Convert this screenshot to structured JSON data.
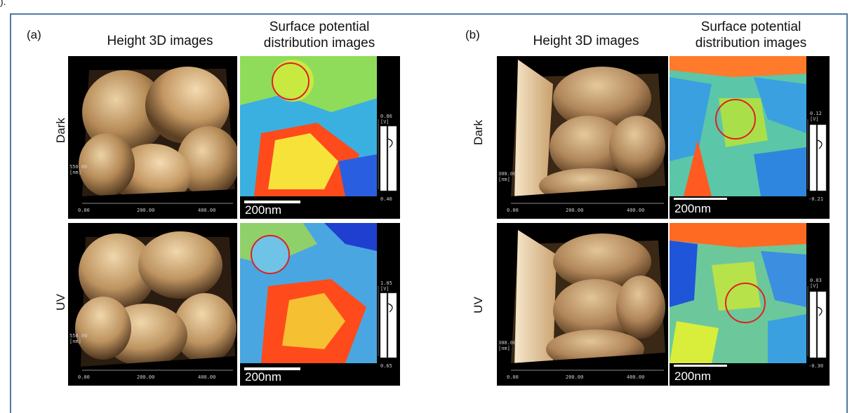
{
  "corner_mark": ").",
  "panels": [
    {
      "letter": "(a)",
      "col_titles": [
        "Height 3D images",
        "Surface potential\ndistribution images"
      ],
      "rows": [
        {
          "label": "Dark",
          "z_scale": "550.00",
          "z_unit": "[nm]",
          "x_ticks": [
            "0.00",
            "200.00",
            "400.00"
          ],
          "cb_max": "0.86",
          "cb_unit": "[V]",
          "cb_min": "0.46",
          "scale_bar": "200nm"
        },
        {
          "label": "UV",
          "z_scale": "550.00",
          "z_unit": "[nm]",
          "x_ticks": [
            "0.00",
            "200.00",
            "400.00"
          ],
          "cb_max": "1.05",
          "cb_unit": "[V]",
          "cb_min": "0.65",
          "scale_bar": "200nm"
        }
      ]
    },
    {
      "letter": "(b)",
      "col_titles": [
        "Height 3D images",
        "Surface potential\ndistribution images"
      ],
      "rows": [
        {
          "label": "Dark",
          "z_scale": "300.00",
          "z_unit": "[nm]",
          "x_ticks": [
            "0.00",
            "200.00",
            "400.00"
          ],
          "cb_max": "0.12",
          "cb_unit": "[V]",
          "cb_min": "-0.21",
          "scale_bar": "200nm"
        },
        {
          "label": "UV",
          "z_scale": "300.00",
          "z_unit": "[nm]",
          "x_ticks": [
            "0.00",
            "200.00",
            "400.00"
          ],
          "cb_max": "0.03",
          "cb_unit": "[V]",
          "cb_min": "-0.30",
          "scale_bar": "200nm"
        }
      ]
    }
  ],
  "colors": {
    "frame_border": "#4f79a6",
    "circle": "#e02020",
    "height_light": "#e8cfa4",
    "height_dark": "#6a4a28",
    "potential_low": "#1f4fd8",
    "potential_mid": "#d8ee3a",
    "potential_high": "#ff3a10"
  }
}
